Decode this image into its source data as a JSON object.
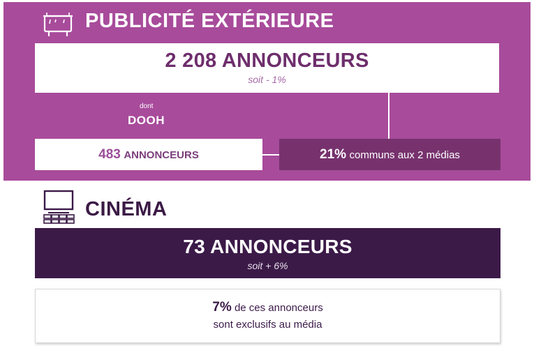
{
  "outdoor": {
    "title": "PUBLICITÉ EXTÉRIEURE",
    "icon": "billboard-icon",
    "total": "2 208 ANNONCEURS",
    "change": "soit - 1%",
    "dont_label": "dont",
    "sub_label": "DOOH",
    "dooh_count": "483",
    "dooh_unit": "ANNONCEURS",
    "common_pct": "21%",
    "common_text": "communs aux 2 médias"
  },
  "cinema": {
    "title": "CINÉMA",
    "icon": "cinema-screen-icon",
    "total": "73 ANNONCEURS",
    "change": "soit + 6%",
    "exclusive_pct": "7%",
    "exclusive_line1": "de ces annonceurs",
    "exclusive_line2": "sont exclusifs au média"
  },
  "colors": {
    "outdoor_bg": "#a84b9b",
    "common_box": "#77326e",
    "cinema_box": "#3b1a48"
  }
}
